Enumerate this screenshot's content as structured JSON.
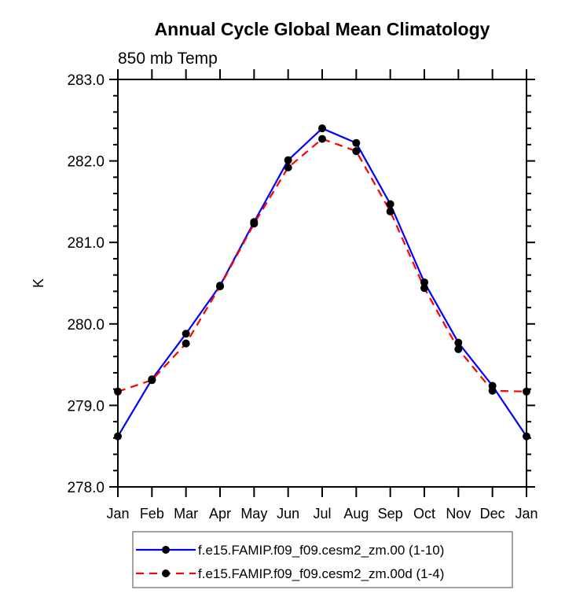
{
  "chart_data": {
    "type": "line",
    "title": "Annual Cycle Global Mean Climatology",
    "subtitle": "850 mb Temp",
    "ylabel": "K",
    "categories": [
      "Jan",
      "Feb",
      "Mar",
      "Apr",
      "May",
      "Jun",
      "Jul",
      "Aug",
      "Sep",
      "Oct",
      "Nov",
      "Dec",
      "Jan"
    ],
    "ylim": [
      278.0,
      283.0
    ],
    "yticks": {
      "values": [
        278,
        279,
        280,
        281,
        282,
        283
      ],
      "labels": [
        "278.0",
        "279.0",
        "280.0",
        "281.0",
        "282.0",
        "283.0"
      ],
      "minor_interval": 0.2
    },
    "grid": false,
    "legend_position": "bottom",
    "series": [
      {
        "name": "f.e15.FAMIP.f09_f09.cesm2_zm.00 (1-10)",
        "color": "#0000ff",
        "line_style": "solid",
        "marker": "filled-circle",
        "marker_color": "#000000",
        "values": [
          278.62,
          279.32,
          279.88,
          280.47,
          281.25,
          282.01,
          282.4,
          282.22,
          281.47,
          280.51,
          279.77,
          279.24,
          278.62
        ]
      },
      {
        "name": "f.e15.FAMIP.f09_f09.cesm2_zm.00d (1-4)",
        "color": "#ff0000",
        "line_style": "dashed",
        "marker": "filled-circle",
        "marker_color": "#000000",
        "values": [
          279.17,
          279.31,
          279.76,
          280.46,
          281.23,
          281.92,
          282.27,
          282.12,
          281.38,
          280.44,
          279.69,
          279.18,
          279.17
        ]
      }
    ]
  },
  "colors": {
    "background": "#ffffff",
    "axis": "#000000",
    "text": "#000000",
    "legend_border": "#999999"
  }
}
